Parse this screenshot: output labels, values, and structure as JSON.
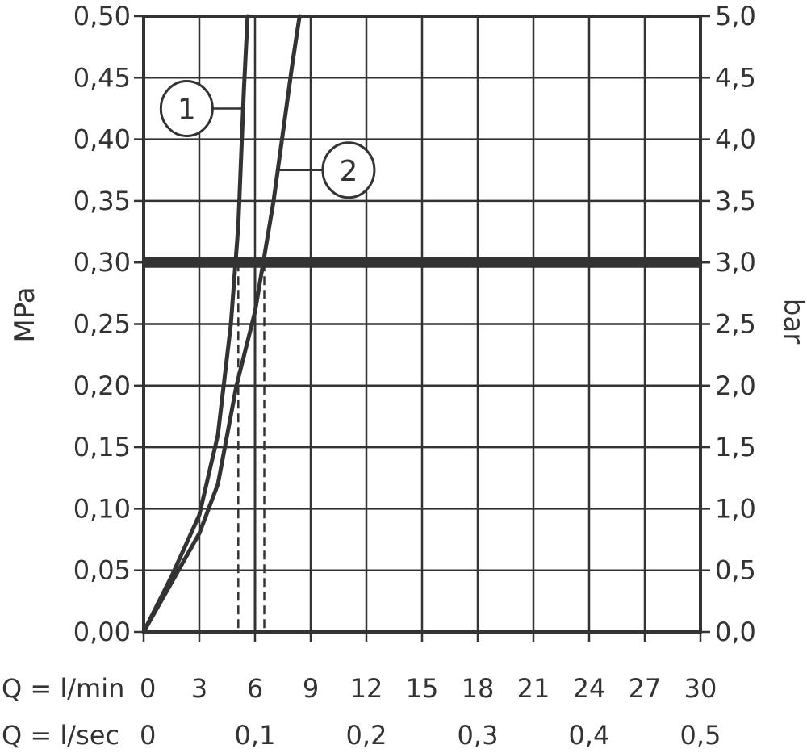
{
  "chart_data": {
    "type": "line",
    "title": "",
    "ylabel_left": "MPa",
    "ylabel_right": "bar",
    "x_row1_label": "Q = l/min",
    "x_row2_label": "Q = l/sec",
    "xlim": [
      0,
      30
    ],
    "ylim": [
      0,
      0.5
    ],
    "grid": true,
    "x_ticks": [
      0,
      3,
      6,
      9,
      12,
      15,
      18,
      21,
      24,
      27,
      30
    ],
    "x_tick_labels_lmin": [
      "0",
      "3",
      "6",
      "9",
      "12",
      "15",
      "18",
      "21",
      "24",
      "27",
      "30"
    ],
    "x_tick_labels_lsec": [
      {
        "x": 0,
        "label": "0"
      },
      {
        "x": 6,
        "label": "0,1"
      },
      {
        "x": 12,
        "label": "0,2"
      },
      {
        "x": 18,
        "label": "0,3"
      },
      {
        "x": 24,
        "label": "0,4"
      },
      {
        "x": 30,
        "label": "0,5"
      }
    ],
    "y_ticks": [
      0,
      0.05,
      0.1,
      0.15,
      0.2,
      0.25,
      0.3,
      0.35,
      0.4,
      0.45,
      0.5
    ],
    "y_tick_labels_mpa": [
      "0,00",
      "0,05",
      "0,10",
      "0,15",
      "0,20",
      "0,25",
      "0,30",
      "0,35",
      "0,40",
      "0,45",
      "0,50"
    ],
    "y_tick_labels_bar": [
      "0,0",
      "0,5",
      "1,0",
      "1,5",
      "2,0",
      "2,5",
      "3,0",
      "3,5",
      "4,0",
      "4,5",
      "5,0"
    ],
    "reference_line": {
      "y": 0.3
    },
    "series": [
      {
        "name": "1",
        "x": [
          0,
          1.5,
          3.0,
          4.0,
          4.7,
          5.1,
          5.4,
          5.6
        ],
        "y": [
          0,
          0.045,
          0.095,
          0.16,
          0.25,
          0.33,
          0.44,
          0.5
        ]
      },
      {
        "name": "2",
        "x": [
          0,
          1.5,
          3.0,
          4.0,
          5.0,
          6.0,
          7.0,
          8.0,
          8.4
        ],
        "y": [
          0,
          0.04,
          0.08,
          0.12,
          0.2,
          0.26,
          0.35,
          0.46,
          0.5
        ]
      }
    ],
    "dashed_markers": [
      {
        "x": 5.1,
        "y": 0.3
      },
      {
        "x": 6.5,
        "y": 0.3
      }
    ],
    "thin_marker": {
      "x": 6.0,
      "y": 0.3
    },
    "callouts": [
      {
        "label": "1",
        "series": "1",
        "anchor_x": 5.45,
        "anchor_y": 0.425
      },
      {
        "label": "2",
        "series": "2",
        "anchor_x": 7.3,
        "anchor_y": 0.375
      }
    ]
  }
}
